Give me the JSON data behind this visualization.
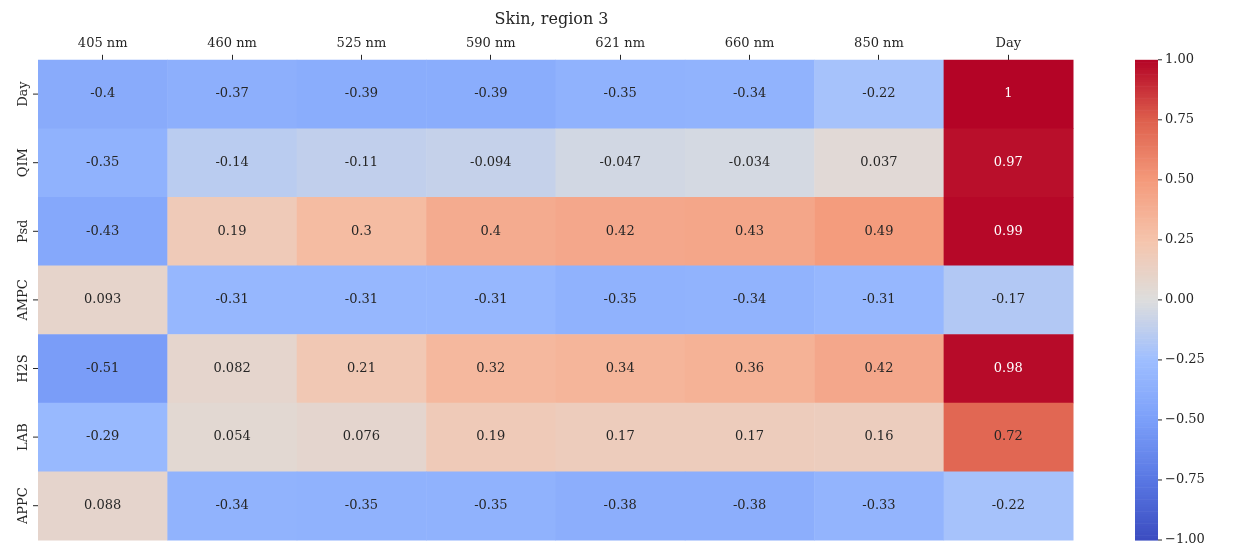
{
  "chart_data": {
    "type": "heatmap",
    "title": "Skin, region 3",
    "categories": [
      "405 nm",
      "460 nm",
      "525 nm",
      "590 nm",
      "621 nm",
      "660 nm",
      "850 nm",
      "Day"
    ],
    "y_categories": [
      "Day",
      "QIM",
      "Psd",
      "AMPC",
      "H2S",
      "LAB",
      "APPC"
    ],
    "cells": [
      [
        -0.4,
        -0.37,
        -0.39,
        -0.39,
        -0.35,
        -0.34,
        -0.22,
        1
      ],
      [
        -0.35,
        -0.14,
        -0.11,
        -0.094,
        -0.047,
        -0.034,
        0.037,
        0.97
      ],
      [
        -0.43,
        0.19,
        0.3,
        0.4,
        0.42,
        0.43,
        0.49,
        0.99
      ],
      [
        0.093,
        -0.31,
        -0.31,
        -0.31,
        -0.35,
        -0.34,
        -0.31,
        -0.17
      ],
      [
        -0.51,
        0.082,
        0.21,
        0.32,
        0.34,
        0.36,
        0.42,
        0.98
      ],
      [
        -0.29,
        0.054,
        0.076,
        0.19,
        0.17,
        0.17,
        0.16,
        0.72
      ],
      [
        0.088,
        -0.34,
        -0.35,
        -0.35,
        -0.38,
        -0.38,
        -0.33,
        -0.22
      ]
    ],
    "data_labels": true,
    "clim": [
      -1,
      1
    ],
    "cticks": [
      {
        "value": 1,
        "label": "1.00"
      },
      {
        "value": 0.75,
        "label": "0.75"
      },
      {
        "value": 0.5,
        "label": "0.50"
      },
      {
        "value": 0.25,
        "label": "0.25"
      },
      {
        "value": 0,
        "label": "0.00"
      },
      {
        "value": -0.25,
        "label": "−0.25"
      },
      {
        "value": -0.5,
        "label": "−0.50"
      },
      {
        "value": -0.75,
        "label": "−0.75"
      },
      {
        "value": -1,
        "label": "−1.00"
      }
    ]
  }
}
